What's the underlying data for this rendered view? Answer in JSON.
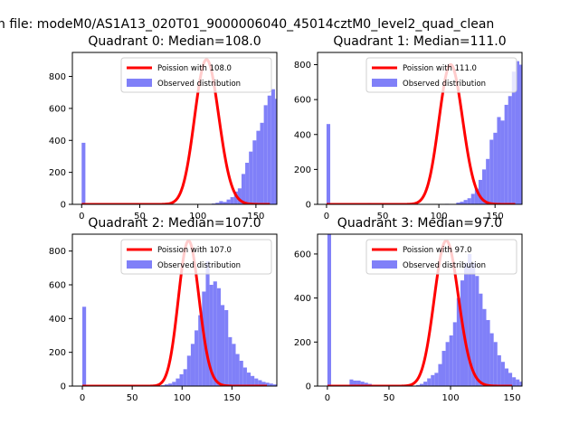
{
  "figure": {
    "suptitle": "n file: modeM0/AS1A13_020T01_9000006040_45014cztM0_level2_quad_clean"
  },
  "colors": {
    "hist_fill": "#8080f8",
    "poisson_line": "#ff0000",
    "axes": "#000000"
  },
  "chart_data": [
    {
      "type": "bar",
      "title": "Quadrant 0: Median=108.0",
      "xlim": [
        -8,
        168
      ],
      "ylim": [
        0,
        950
      ],
      "xticks": [
        0,
        50,
        100,
        150
      ],
      "yticks": [
        0,
        200,
        400,
        600,
        800
      ],
      "legend": {
        "placement": "top-right",
        "entries": [
          "Poission with 108.0",
          "Observed distribution"
        ]
      },
      "median": 108,
      "series": [
        {
          "name": "Observed distribution",
          "kind": "histogram",
          "bin_start": 0,
          "bin_width": 3.2,
          "values": [
            385,
            0,
            0,
            0,
            0,
            0,
            0,
            0,
            0,
            3,
            0,
            0,
            0,
            0,
            0,
            0,
            0,
            0,
            0,
            0,
            0,
            0,
            0,
            0,
            0,
            0,
            0,
            0,
            0,
            0,
            0,
            0,
            2,
            0,
            0,
            5,
            10,
            20,
            15,
            30,
            45,
            80,
            100,
            190,
            260,
            330,
            400,
            460,
            510,
            620,
            680,
            720,
            660,
            690,
            590,
            600,
            480,
            450,
            350,
            270,
            200,
            150,
            100,
            75,
            50,
            35,
            20,
            10,
            5,
            3,
            2,
            1,
            0,
            0,
            0,
            0,
            0,
            0
          ]
        },
        {
          "name": "Poission with 108.0",
          "kind": "curve",
          "lambda": 108,
          "scale": 905,
          "x_range": [
            0,
            162
          ]
        }
      ]
    },
    {
      "type": "bar",
      "title": "Quadrant 1: Median=111.0",
      "xlim": [
        -8,
        174
      ],
      "ylim": [
        0,
        870
      ],
      "xticks": [
        0,
        50,
        100,
        150
      ],
      "yticks": [
        0,
        200,
        400,
        600,
        800
      ],
      "legend": {
        "placement": "top-right",
        "entries": [
          "Poission with 111.0",
          "Observed distribution"
        ]
      },
      "median": 111,
      "series": [
        {
          "name": "Observed distribution",
          "kind": "histogram",
          "bin_start": 0,
          "bin_width": 3.3,
          "values": [
            460,
            0,
            0,
            0,
            0,
            0,
            0,
            0,
            0,
            0,
            0,
            8,
            5,
            0,
            0,
            0,
            0,
            0,
            0,
            0,
            0,
            0,
            0,
            0,
            0,
            0,
            0,
            0,
            0,
            0,
            0,
            0,
            3,
            0,
            0,
            10,
            15,
            25,
            35,
            60,
            90,
            140,
            200,
            260,
            370,
            410,
            500,
            480,
            570,
            620,
            760,
            820,
            800,
            740,
            720,
            650,
            540,
            470,
            420,
            350,
            270,
            200,
            180,
            120,
            90,
            60,
            40,
            30,
            20,
            10,
            5,
            3,
            2,
            0,
            0,
            0,
            0,
            0,
            0
          ]
        },
        {
          "name": "Poission with 111.0",
          "kind": "curve",
          "lambda": 111,
          "scale": 800,
          "x_range": [
            0,
            168
          ]
        }
      ]
    },
    {
      "type": "bar",
      "title": "Quadrant 2: Median=107.0",
      "xlim": [
        -10,
        195
      ],
      "ylim": [
        0,
        900
      ],
      "xticks": [
        0,
        50,
        100,
        150
      ],
      "yticks": [
        0,
        200,
        400,
        600,
        800
      ],
      "legend": {
        "placement": "top-right",
        "entries": [
          "Poission with 107.0",
          "Observed distribution"
        ]
      },
      "median": 107,
      "series": [
        {
          "name": "Observed distribution",
          "kind": "histogram",
          "bin_start": 0,
          "bin_width": 3.75,
          "values": [
            470,
            0,
            0,
            0,
            0,
            0,
            0,
            0,
            0,
            0,
            0,
            0,
            0,
            0,
            0,
            0,
            0,
            0,
            0,
            0,
            0,
            5,
            10,
            15,
            25,
            45,
            70,
            100,
            180,
            250,
            330,
            420,
            560,
            740,
            600,
            620,
            580,
            480,
            450,
            290,
            250,
            190,
            150,
            110,
            80,
            60,
            45,
            35,
            25,
            20,
            15,
            10,
            5,
            3,
            0
          ]
        },
        {
          "name": "Poission with 107.0",
          "kind": "curve",
          "lambda": 107,
          "scale": 860,
          "x_range": [
            0,
            185
          ]
        }
      ]
    },
    {
      "type": "bar",
      "title": "Quadrant 3: Median=97.0",
      "xlim": [
        -8,
        158
      ],
      "ylim": [
        0,
        690
      ],
      "xticks": [
        0,
        50,
        100,
        150
      ],
      "yticks": [
        0,
        200,
        400,
        600
      ],
      "legend": {
        "placement": "top-right",
        "entries": [
          "Poission with 97.0",
          "Observed distribution"
        ]
      },
      "median": 97,
      "series": [
        {
          "name": "Observed distribution",
          "kind": "histogram",
          "bin_start": 0,
          "bin_width": 3.0,
          "values": [
            690,
            0,
            0,
            0,
            0,
            0,
            30,
            25,
            25,
            20,
            15,
            10,
            5,
            3,
            0,
            0,
            0,
            0,
            0,
            0,
            0,
            0,
            0,
            2,
            5,
            10,
            20,
            35,
            50,
            60,
            100,
            160,
            200,
            230,
            290,
            400,
            480,
            560,
            600,
            560,
            500,
            420,
            350,
            300,
            240,
            200,
            140,
            110,
            80,
            60,
            40,
            30,
            20,
            10,
            5,
            0
          ]
        },
        {
          "name": "Poission with 97.0",
          "kind": "curve",
          "lambda": 97,
          "scale": 660,
          "x_range": [
            0,
            150
          ]
        }
      ]
    }
  ]
}
